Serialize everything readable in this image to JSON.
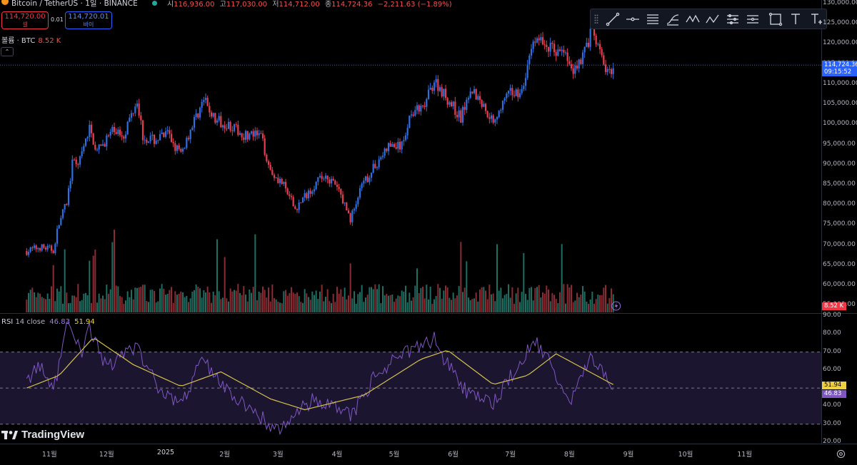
{
  "header": {
    "symbol": "Bitcoin / TetherUS · 1일 · BINANCE",
    "ohlc": [
      {
        "label": "시",
        "value": "116,936.00"
      },
      {
        "label": "고",
        "value": "117,030.00"
      },
      {
        "label": "저",
        "value": "114,712.00"
      },
      {
        "label": "종",
        "value": "114,724.36"
      }
    ],
    "change": "−2,211.63 (−1.89%)"
  },
  "trade": {
    "sell_price": "114,720.00",
    "sell_label": "셀",
    "spread": "0.01",
    "buy_price": "114,720.01",
    "buy_label": "바이"
  },
  "volume_legend": {
    "label": "볼륨 · BTC",
    "value": "8.52 K"
  },
  "collapse_glyph": "⌃",
  "toolbar": {
    "tools": [
      "trend-line",
      "horizontal-ray",
      "parallel-channel",
      "fib-retracement",
      "xabcd-pattern",
      "abcd-pattern",
      "long-position",
      "short-position",
      "rectangle",
      "text",
      "text-tool"
    ]
  },
  "price_axis": {
    "labels": [
      "130,000.00",
      "125,000.00",
      "120,000.00",
      "115,000.00",
      "110,000.00",
      "105,000.00",
      "100,000.00",
      "95,000.00",
      "90,000.00",
      "85,000.00",
      "80,000.00",
      "75,000.00",
      "70,000.00",
      "65,000.00",
      "60,000.00",
      "55,000.00"
    ],
    "current_price": "114,724.36",
    "countdown": "09:15:52",
    "volume_value": "8.52 K"
  },
  "rsi": {
    "label": "RSI",
    "settings": "14 close",
    "rsi_value": "46.83",
    "ma_value": "51.94",
    "axis_labels": [
      "90.00",
      "80.00",
      "70.00",
      "60.00",
      "50.00",
      "40.00",
      "30.00",
      "20.00"
    ],
    "upper_band": 70,
    "middle_band": 50,
    "lower_band": 30
  },
  "logo": "TradingView",
  "time_axis": [
    "11월",
    "12월",
    "2025",
    "2월",
    "3월",
    "4월",
    "5월",
    "6월",
    "7월",
    "8월",
    "9월",
    "10월",
    "11월"
  ],
  "colors": {
    "up": "#26a69a",
    "down": "#ef5350",
    "up_candle": "#2f6fe0",
    "down_candle": "#e53e50",
    "rsi_line": "#7e57c2",
    "rsi_ma": "#d4c24a",
    "price_line": "#2962ff",
    "rsi_band": "#1c1530"
  },
  "chart_data": {
    "type": "candlestick",
    "interval": "1D",
    "ylim": [
      55000,
      130000
    ],
    "close_path": [
      {
        "x": "2024-10-20",
        "y": 68500
      },
      {
        "x": "2024-10-27",
        "y": 69500
      },
      {
        "x": "2024-11-03",
        "y": 68800
      },
      {
        "x": "2024-11-06",
        "y": 75500
      },
      {
        "x": "2024-11-10",
        "y": 80500
      },
      {
        "x": "2024-11-13",
        "y": 90000
      },
      {
        "x": "2024-11-17",
        "y": 91000
      },
      {
        "x": "2024-11-22",
        "y": 99000
      },
      {
        "x": "2024-11-26",
        "y": 93000
      },
      {
        "x": "2024-12-01",
        "y": 96500
      },
      {
        "x": "2024-12-05",
        "y": 98500
      },
      {
        "x": "2024-12-10",
        "y": 97500
      },
      {
        "x": "2024-12-17",
        "y": 106500
      },
      {
        "x": "2024-12-20",
        "y": 97000
      },
      {
        "x": "2024-12-26",
        "y": 96000
      },
      {
        "x": "2025-01-02",
        "y": 97500
      },
      {
        "x": "2025-01-09",
        "y": 92500
      },
      {
        "x": "2025-01-15",
        "y": 100000
      },
      {
        "x": "2025-01-21",
        "y": 106000
      },
      {
        "x": "2025-01-27",
        "y": 101000
      },
      {
        "x": "2025-02-03",
        "y": 100000
      },
      {
        "x": "2025-02-10",
        "y": 97500
      },
      {
        "x": "2025-02-20",
        "y": 97000
      },
      {
        "x": "2025-02-25",
        "y": 88500
      },
      {
        "x": "2025-03-03",
        "y": 85500
      },
      {
        "x": "2025-03-10",
        "y": 79000
      },
      {
        "x": "2025-03-20",
        "y": 85000
      },
      {
        "x": "2025-03-26",
        "y": 87500
      },
      {
        "x": "2025-04-02",
        "y": 83500
      },
      {
        "x": "2025-04-08",
        "y": 76500
      },
      {
        "x": "2025-04-14",
        "y": 84500
      },
      {
        "x": "2025-04-22",
        "y": 90500
      },
      {
        "x": "2025-04-28",
        "y": 94500
      },
      {
        "x": "2025-05-05",
        "y": 94500
      },
      {
        "x": "2025-05-10",
        "y": 103500
      },
      {
        "x": "2025-05-16",
        "y": 103500
      },
      {
        "x": "2025-05-22",
        "y": 111000
      },
      {
        "x": "2025-05-28",
        "y": 107000
      },
      {
        "x": "2025-06-05",
        "y": 101500
      },
      {
        "x": "2025-06-10",
        "y": 109500
      },
      {
        "x": "2025-06-17",
        "y": 104500
      },
      {
        "x": "2025-06-22",
        "y": 101000
      },
      {
        "x": "2025-06-30",
        "y": 107500
      },
      {
        "x": "2025-07-08",
        "y": 108500
      },
      {
        "x": "2025-07-11",
        "y": 117500
      },
      {
        "x": "2025-07-14",
        "y": 121500
      },
      {
        "x": "2025-07-22",
        "y": 119000
      },
      {
        "x": "2025-07-30",
        "y": 117500
      },
      {
        "x": "2025-08-02",
        "y": 113000
      },
      {
        "x": "2025-08-08",
        "y": 117000
      },
      {
        "x": "2025-08-13",
        "y": 123500
      },
      {
        "x": "2025-08-17",
        "y": 117500
      },
      {
        "x": "2025-08-21",
        "y": 112500
      },
      {
        "x": "2025-08-24",
        "y": 114724
      }
    ],
    "rsi_path": [
      {
        "x": "2024-10-20",
        "y": 55
      },
      {
        "x": "2024-10-27",
        "y": 62
      },
      {
        "x": "2024-11-03",
        "y": 48
      },
      {
        "x": "2024-11-10",
        "y": 84
      },
      {
        "x": "2024-11-18",
        "y": 70
      },
      {
        "x": "2024-11-22",
        "y": 84
      },
      {
        "x": "2024-12-01",
        "y": 62
      },
      {
        "x": "2024-12-17",
        "y": 72
      },
      {
        "x": "2024-12-30",
        "y": 48
      },
      {
        "x": "2025-01-09",
        "y": 40
      },
      {
        "x": "2025-01-20",
        "y": 65
      },
      {
        "x": "2025-02-03",
        "y": 48
      },
      {
        "x": "2025-02-25",
        "y": 30
      },
      {
        "x": "2025-03-03",
        "y": 27
      },
      {
        "x": "2025-03-20",
        "y": 45
      },
      {
        "x": "2025-04-08",
        "y": 34
      },
      {
        "x": "2025-04-22",
        "y": 58
      },
      {
        "x": "2025-05-10",
        "y": 72
      },
      {
        "x": "2025-05-22",
        "y": 77
      },
      {
        "x": "2025-06-05",
        "y": 50
      },
      {
        "x": "2025-06-22",
        "y": 42
      },
      {
        "x": "2025-07-14",
        "y": 76
      },
      {
        "x": "2025-08-02",
        "y": 45
      },
      {
        "x": "2025-08-13",
        "y": 68
      },
      {
        "x": "2025-08-24",
        "y": 46.83
      }
    ],
    "rsi_ma_path": [
      {
        "x": "2024-10-20",
        "y": 50
      },
      {
        "x": "2024-11-06",
        "y": 57
      },
      {
        "x": "2024-11-24",
        "y": 78
      },
      {
        "x": "2024-12-15",
        "y": 63
      },
      {
        "x": "2025-01-09",
        "y": 51
      },
      {
        "x": "2025-01-30",
        "y": 59
      },
      {
        "x": "2025-02-25",
        "y": 44
      },
      {
        "x": "2025-03-15",
        "y": 38
      },
      {
        "x": "2025-04-15",
        "y": 46
      },
      {
        "x": "2025-05-15",
        "y": 66
      },
      {
        "x": "2025-05-29",
        "y": 71
      },
      {
        "x": "2025-06-22",
        "y": 52
      },
      {
        "x": "2025-07-10",
        "y": 57
      },
      {
        "x": "2025-07-25",
        "y": 69
      },
      {
        "x": "2025-08-24",
        "y": 51.94
      }
    ]
  }
}
